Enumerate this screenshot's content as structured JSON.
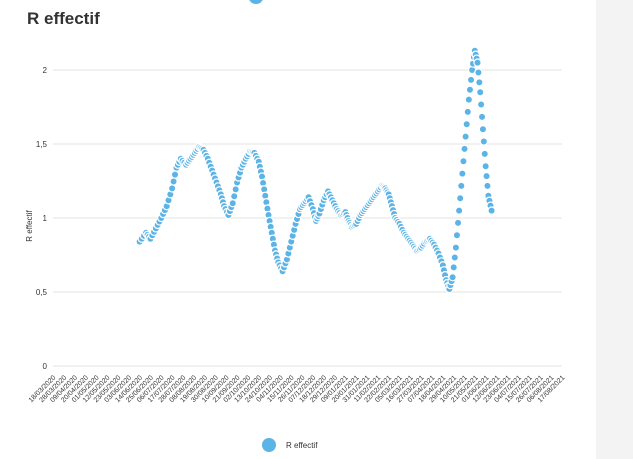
{
  "chart_data": {
    "type": "scatter",
    "title": "R effectif",
    "ylabel": "R effectif",
    "xlabel": "",
    "ylim": [
      0,
      2.2
    ],
    "yticks": [
      0,
      0.5,
      1,
      1.5,
      2
    ],
    "ytick_labels": [
      "0",
      "0,5",
      "1",
      "1,5",
      "2"
    ],
    "grid": true,
    "legend": "bottom",
    "color": "#5cb3e6",
    "x_tick_labels": [
      "18/03/2020",
      "28/03/2020",
      "09/04/2020",
      "20/04/2020",
      "01/05/2020",
      "12/05/2020",
      "23/05/2020",
      "03/06/2020",
      "14/06/2020",
      "25/06/2020",
      "06/07/2020",
      "17/07/2020",
      "28/07/2020",
      "08/08/2020",
      "19/08/2020",
      "30/08/2020",
      "10/09/2020",
      "21/09/2020",
      "02/10/2020",
      "13/10/2020",
      "24/10/2020",
      "04/11/2020",
      "15/11/2020",
      "26/11/2020",
      "07/12/2020",
      "18/12/2020",
      "29/12/2020",
      "09/01/2021",
      "20/01/2021",
      "31/01/2021",
      "11/02/2021",
      "22/02/2021",
      "05/03/2021",
      "16/03/2021",
      "27/03/2021",
      "07/04/2021",
      "18/04/2021",
      "29/04/2021",
      "10/05/2021",
      "21/05/2021",
      "01/06/2021",
      "12/06/2021",
      "23/06/2021",
      "04/07/2021",
      "15/07/2021",
      "26/07/2021",
      "06/08/2021",
      "17/08/2021"
    ],
    "series": [
      {
        "name": "R effectif",
        "keyframes": [
          [
            8.0,
            0.84
          ],
          [
            8.6,
            0.9
          ],
          [
            9.0,
            0.86
          ],
          [
            9.5,
            0.93
          ],
          [
            10.0,
            1.0
          ],
          [
            10.5,
            1.08
          ],
          [
            11.0,
            1.2
          ],
          [
            11.4,
            1.34
          ],
          [
            11.8,
            1.4
          ],
          [
            12.3,
            1.36
          ],
          [
            12.7,
            1.4
          ],
          [
            13.1,
            1.44
          ],
          [
            13.5,
            1.48
          ],
          [
            13.9,
            1.46
          ],
          [
            14.3,
            1.4
          ],
          [
            14.7,
            1.32
          ],
          [
            15.1,
            1.24
          ],
          [
            15.5,
            1.16
          ],
          [
            15.8,
            1.08
          ],
          [
            16.2,
            1.02
          ],
          [
            16.6,
            1.1
          ],
          [
            17.0,
            1.24
          ],
          [
            17.4,
            1.34
          ],
          [
            17.8,
            1.4
          ],
          [
            18.2,
            1.45
          ],
          [
            18.6,
            1.44
          ],
          [
            19.0,
            1.38
          ],
          [
            19.3,
            1.28
          ],
          [
            19.6,
            1.15
          ],
          [
            19.9,
            1.02
          ],
          [
            20.2,
            0.9
          ],
          [
            20.5,
            0.78
          ],
          [
            20.8,
            0.7
          ],
          [
            21.2,
            0.64
          ],
          [
            21.6,
            0.72
          ],
          [
            22.0,
            0.84
          ],
          [
            22.4,
            0.96
          ],
          [
            22.8,
            1.06
          ],
          [
            23.2,
            1.1
          ],
          [
            23.6,
            1.14
          ],
          [
            24.0,
            1.06
          ],
          [
            24.3,
            0.98
          ],
          [
            24.6,
            1.03
          ],
          [
            25.0,
            1.12
          ],
          [
            25.4,
            1.18
          ],
          [
            25.8,
            1.12
          ],
          [
            26.2,
            1.06
          ],
          [
            26.6,
            1.02
          ],
          [
            27.0,
            1.04
          ],
          [
            27.3,
            0.98
          ],
          [
            27.6,
            0.94
          ],
          [
            28.0,
            0.96
          ],
          [
            28.4,
            1.02
          ],
          [
            28.8,
            1.06
          ],
          [
            29.2,
            1.1
          ],
          [
            29.6,
            1.14
          ],
          [
            30.0,
            1.18
          ],
          [
            30.4,
            1.22
          ],
          [
            30.7,
            1.2
          ],
          [
            31.0,
            1.16
          ],
          [
            31.3,
            1.08
          ],
          [
            31.6,
            1.0
          ],
          [
            32.0,
            0.96
          ],
          [
            32.4,
            0.9
          ],
          [
            32.8,
            0.86
          ],
          [
            33.2,
            0.82
          ],
          [
            33.6,
            0.78
          ],
          [
            34.0,
            0.8
          ],
          [
            34.4,
            0.84
          ],
          [
            34.8,
            0.86
          ],
          [
            35.2,
            0.82
          ],
          [
            35.6,
            0.76
          ],
          [
            36.0,
            0.68
          ],
          [
            36.3,
            0.58
          ],
          [
            36.6,
            0.52
          ],
          [
            36.9,
            0.6
          ],
          [
            37.2,
            0.8
          ],
          [
            37.5,
            1.05
          ],
          [
            37.8,
            1.3
          ],
          [
            38.1,
            1.55
          ],
          [
            38.4,
            1.8
          ],
          [
            38.7,
            2.0
          ],
          [
            38.95,
            2.13
          ],
          [
            39.2,
            2.05
          ],
          [
            39.45,
            1.85
          ],
          [
            39.7,
            1.6
          ],
          [
            39.95,
            1.35
          ],
          [
            40.2,
            1.15
          ],
          [
            40.5,
            1.05
          ]
        ]
      }
    ],
    "x_index_domain": [
      0,
      47
    ]
  }
}
